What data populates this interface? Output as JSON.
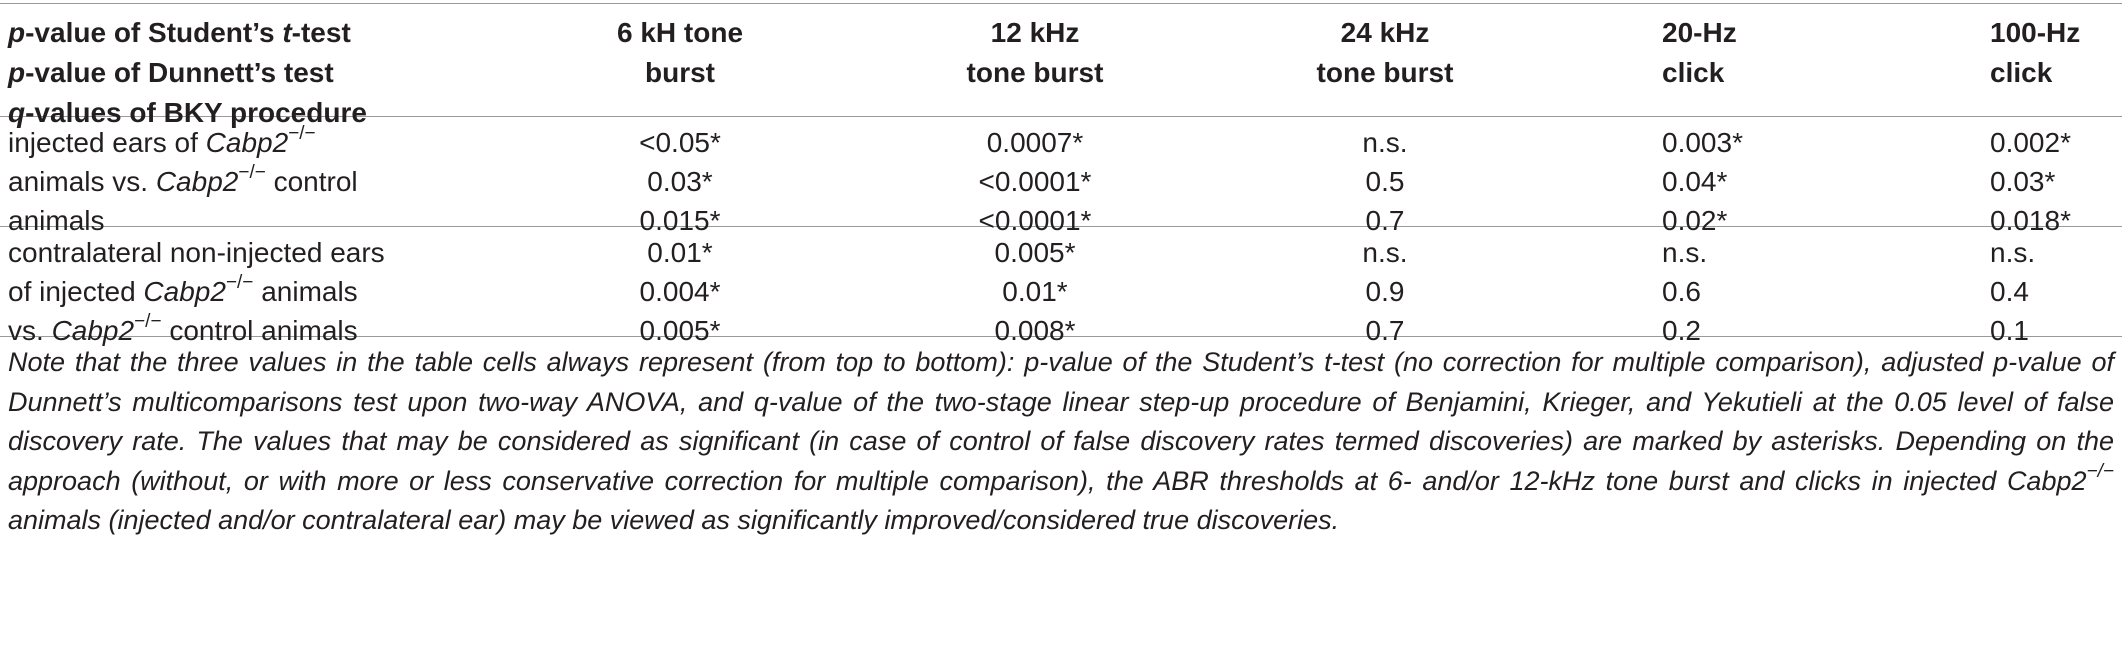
{
  "header": {
    "stub": [
      {
        "a": "p",
        "b": "-value of Student’s ",
        "c": "t",
        "d": "-test"
      },
      {
        "a": "p",
        "b": "-value of Dunnett’s test",
        "c": "",
        "d": ""
      },
      {
        "a": "q",
        "b": "-values of BKY procedure",
        "c": "",
        "d": ""
      }
    ],
    "columns": [
      {
        "line1": "6 kH tone",
        "line2": "burst"
      },
      {
        "line1": "12 kHz",
        "line2": "tone burst"
      },
      {
        "line1": "24 kHz",
        "line2": "tone burst"
      },
      {
        "line1": "20-Hz",
        "line2": "click"
      },
      {
        "line1": "100-Hz",
        "line2": "click"
      }
    ]
  },
  "rows": [
    {
      "label": {
        "l1a": "injected ears of ",
        "l1i": "Cabp2",
        "l1s": "−/−",
        "l1b": "",
        "l2a": "animals vs. ",
        "l2i": "Cabp2",
        "l2s": "−/−",
        "l2b": " control",
        "l3a": "animals",
        "l3i": "",
        "l3s": "",
        "l3b": ""
      },
      "values": [
        [
          "<0.05*",
          "0.03*",
          "0.015*"
        ],
        [
          "0.0007*",
          "<0.0001*",
          "<0.0001*"
        ],
        [
          "n.s.",
          "0.5",
          "0.7"
        ],
        [
          "0.003*",
          "0.04*",
          "0.02*"
        ],
        [
          "0.002*",
          "0.03*",
          "0.018*"
        ]
      ]
    },
    {
      "label": {
        "l1a": "contralateral non-injected ears",
        "l1i": "",
        "l1s": "",
        "l1b": "",
        "l2a": "of injected ",
        "l2i": "Cabp2",
        "l2s": "−/−",
        "l2b": " animals",
        "l3a": "vs. ",
        "l3i": "Cabp2",
        "l3s": "−/−",
        "l3b": " control animals"
      },
      "values": [
        [
          "0.01*",
          "0.004*",
          "0.005*"
        ],
        [
          "0.005*",
          "0.01*",
          "0.008*"
        ],
        [
          "n.s.",
          "0.9",
          "0.7"
        ],
        [
          "n.s.",
          "0.6",
          "0.2"
        ],
        [
          "n.s.",
          "0.4",
          "0.1"
        ]
      ]
    }
  ],
  "note": {
    "part1": "Note that the three values in the table cells always represent (from top to bottom): p-value of the Student’s t-test (no correction for multiple comparison), adjusted p-value of Dunnett’s multicomparisons test upon two-way ANOVA, and q-value of the two-stage linear step-up procedure of Benjamini, Krieger, and Yekutieli at the 0.05 level of false discovery rate. The values that may be considered as significant (in case of control of false discovery rates termed discoveries) are marked by asterisks. Depending on the approach (without, or with more or less conservative correction for multiple comparison), the ABR thresholds at 6- and/or 12-kHz tone burst and clicks in injected ",
    "gene": "Cabp2",
    "sup": "−/−",
    "part2": " animals (injected and/or contralateral ear) may be viewed as significantly improved/considered true discoveries."
  }
}
